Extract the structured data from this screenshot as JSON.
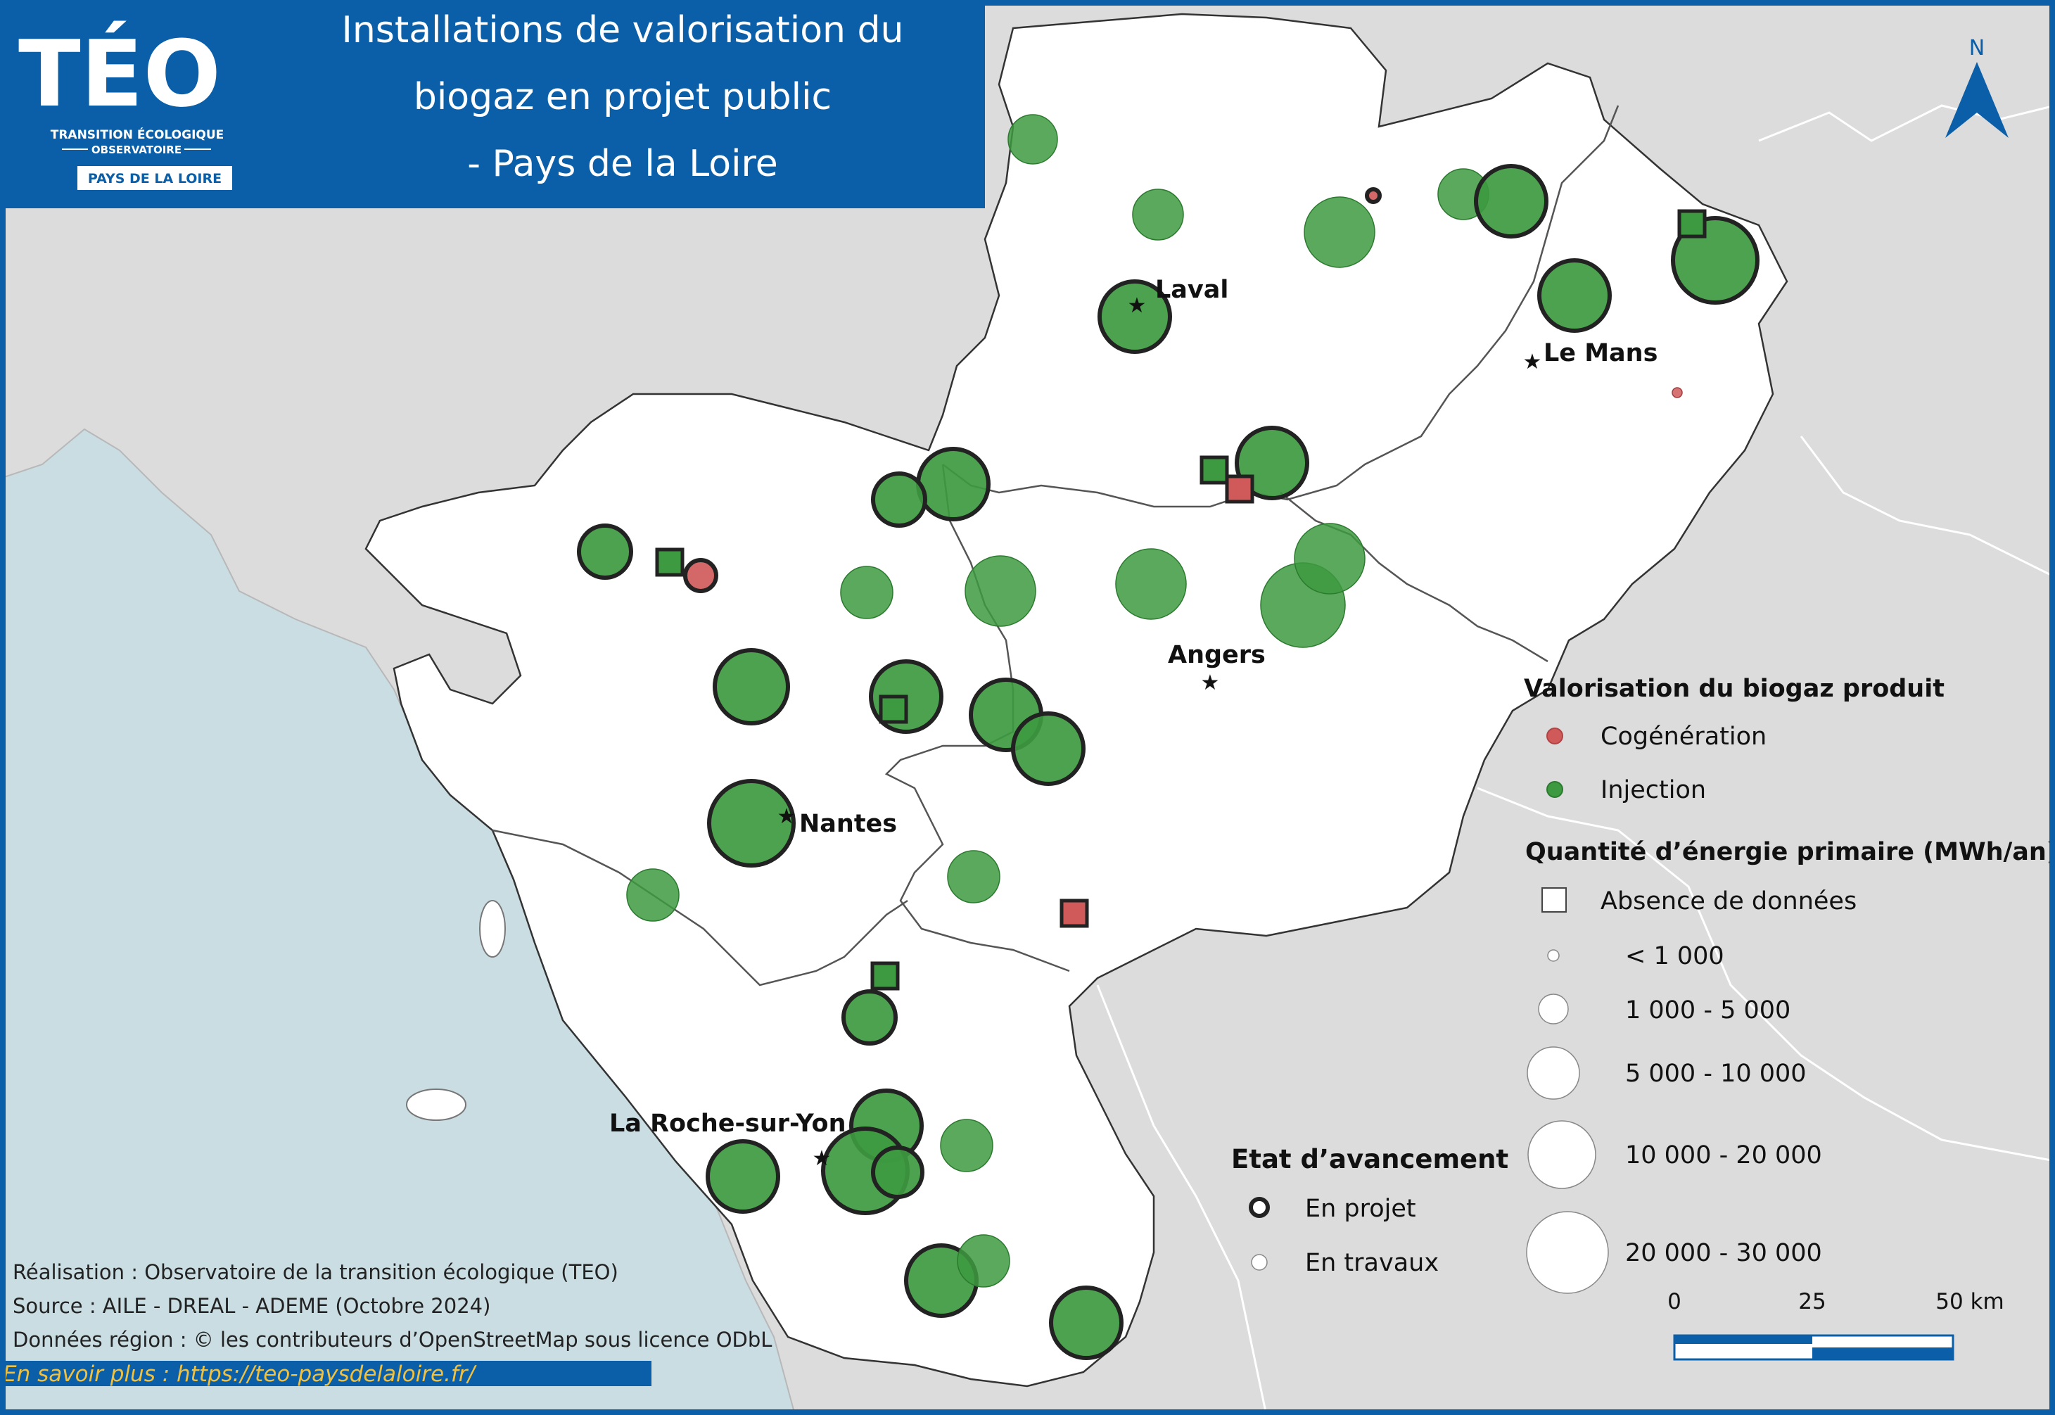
{
  "title": {
    "line1": "Installations de valorisation du",
    "line2": "biogaz en projet public",
    "line3": "- Pays de la Loire"
  },
  "logo": {
    "name": "TÉO",
    "subtitle1": "TRANSITION ÉCOLOGIQUE",
    "subtitle2": "OBSERVATOIRE",
    "region": "PAYS DE LA LOIRE"
  },
  "north_arrow": {
    "label": "N"
  },
  "cities": [
    "Laval",
    "Le Mans",
    "Angers",
    "Nantes",
    "La Roche-sur-Yon"
  ],
  "legend": {
    "valorisation": {
      "title": "Valorisation du biogaz produit",
      "items": [
        {
          "label": "Cogénération",
          "color": "#d05a5a"
        },
        {
          "label": "Injection",
          "color": "#3d9a40"
        }
      ]
    },
    "energy": {
      "title": "Quantité d’énergie primaire (MWh/an)",
      "no_data": "Absence de données",
      "classes": [
        "< 1 000",
        "1 000 - 5 000",
        "5 000 -  10 000",
        "10 000 -  20 000",
        "20 000 -  30 000"
      ]
    },
    "status": {
      "title": "Etat d’avancement",
      "items": [
        "En projet",
        "En travaux"
      ]
    }
  },
  "scale_bar": {
    "labels": [
      "0",
      "25",
      "50 km"
    ]
  },
  "credits": {
    "realisation": "Réalisation : Observatoire de la transition écologique (TEO)",
    "source": "Source : AILE - DREAL - ADEME (Octobre 2024)",
    "donnees": "Données région : © les contributeurs d’OpenStreetMap sous licence ODbL",
    "link": "En savoir plus : https://teo-paysdelaloire.fr/"
  },
  "colors": {
    "frame_blue": "#0a5fa8",
    "sea": "#c9dde2",
    "neighbours": "#dcdcdc",
    "region": "#ffffff",
    "injection": "#3d9a40",
    "cogeneration": "#d05a5a"
  }
}
